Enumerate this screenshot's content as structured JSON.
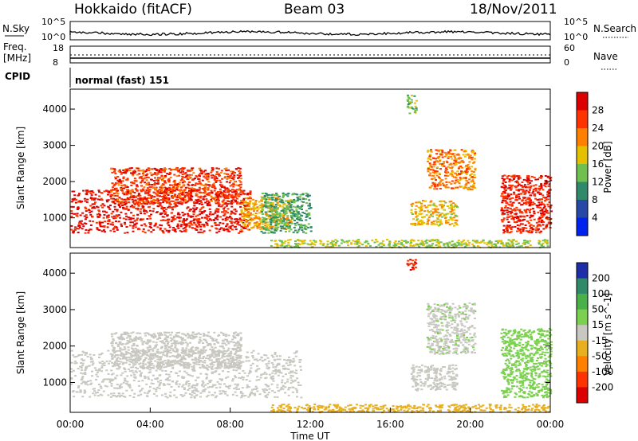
{
  "header": {
    "station": "Hokkaido (fitACF)",
    "beam": "Beam 03",
    "date": "18/Nov/2011"
  },
  "top_panels": {
    "nsky_label": "N.Sky",
    "nsky_ticks": [
      "10^5",
      "10^0"
    ],
    "nsearch_label": "N.Search",
    "nsearch_ticks": [
      "10^5",
      "10^0"
    ],
    "freq_label_line1": "Freq.",
    "freq_label_line2": "[MHz]",
    "freq_ticks": [
      "18",
      "8"
    ],
    "nave_label": "Nave",
    "nave_ticks": [
      "60",
      "0"
    ],
    "cpid_label": "CPID",
    "cpid_value": "normal (fast) 151"
  },
  "chart_data": [
    {
      "type": "heatmap",
      "panel": "power",
      "xlabel": "",
      "ylabel": "Slant Range [km]",
      "xlim": [
        0,
        24
      ],
      "ylim": [
        180,
        4550
      ],
      "y_ticks": [
        "1000",
        "2000",
        "3000",
        "4000"
      ],
      "colorbar": {
        "label": "Power [dB]",
        "ticks": [
          "28",
          "24",
          "20",
          "16",
          "12",
          "8",
          "4"
        ],
        "colors": [
          "#dd0000",
          "#ff3300",
          "#ff8000",
          "#e4c000",
          "#70c050",
          "#2f8a6a",
          "#2848a8",
          "#0022ee"
        ]
      },
      "regions": [
        {
          "t0": 0.0,
          "t1": 9.0,
          "r0": 600,
          "r1": 1800,
          "level": 27
        },
        {
          "t0": 2.0,
          "t1": 8.5,
          "r0": 1400,
          "r1": 2400,
          "level": 24
        },
        {
          "t0": 8.5,
          "t1": 11.0,
          "r0": 700,
          "r1": 1600,
          "level": 18
        },
        {
          "t0": 9.5,
          "t1": 12.0,
          "r0": 600,
          "r1": 1700,
          "level": 10
        },
        {
          "t0": 10.0,
          "t1": 23.9,
          "r0": 200,
          "r1": 420,
          "level": 14
        },
        {
          "t0": 16.8,
          "t1": 17.3,
          "r0": 3900,
          "r1": 4400,
          "level": 12
        },
        {
          "t0": 17.0,
          "t1": 19.3,
          "r0": 800,
          "r1": 1500,
          "level": 17
        },
        {
          "t0": 17.8,
          "t1": 20.2,
          "r0": 1800,
          "r1": 2900,
          "level": 20
        },
        {
          "t0": 21.5,
          "t1": 24.0,
          "r0": 600,
          "r1": 2200,
          "level": 26
        }
      ]
    },
    {
      "type": "heatmap",
      "panel": "velocity",
      "xlabel": "Time UT",
      "ylabel": "Slant Range [km]",
      "xlim": [
        0,
        24
      ],
      "ylim": [
        180,
        4550
      ],
      "x_ticks": [
        "00:00",
        "04:00",
        "08:00",
        "12:00",
        "16:00",
        "20:00",
        "00:00"
      ],
      "y_ticks": [
        "1000",
        "2000",
        "3000",
        "4000"
      ],
      "colorbar": {
        "label": "Velocity [m s^-1]",
        "ticks": [
          "200",
          "100",
          "50",
          "15",
          "-15",
          "-50",
          "-100",
          "-200"
        ],
        "colors": [
          "#1e2ea8",
          "#2f8a6a",
          "#4ab04a",
          "#7cd050",
          "#c8c8c0",
          "#e8b020",
          "#ff8000",
          "#ff3300",
          "#dd0000"
        ]
      },
      "regions": [
        {
          "t0": 0.0,
          "t1": 11.5,
          "r0": 600,
          "r1": 1900,
          "v": 0
        },
        {
          "t0": 2.0,
          "t1": 8.5,
          "r0": 1400,
          "r1": 2400,
          "v": 0
        },
        {
          "t0": 10.0,
          "t1": 23.9,
          "r0": 200,
          "r1": 420,
          "v": -30
        },
        {
          "t0": 16.8,
          "t1": 17.3,
          "r0": 4100,
          "r1": 4400,
          "v": -200
        },
        {
          "t0": 17.0,
          "t1": 19.3,
          "r0": 800,
          "r1": 1500,
          "v": 0
        },
        {
          "t0": 17.8,
          "t1": 20.2,
          "r0": 1800,
          "r1": 3200,
          "v": 5
        },
        {
          "t0": 21.5,
          "t1": 24.0,
          "r0": 600,
          "r1": 2500,
          "v": 30
        }
      ]
    }
  ]
}
